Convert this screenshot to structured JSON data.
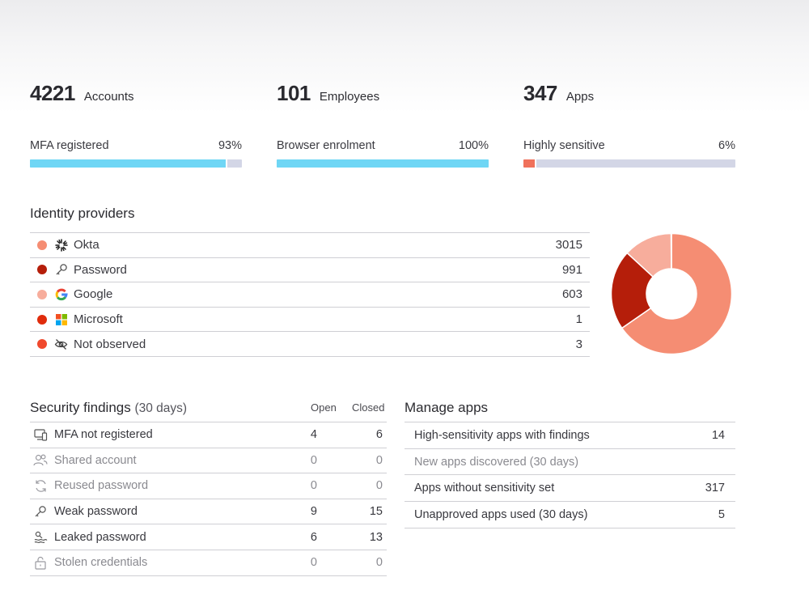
{
  "stats": [
    {
      "value": "4221",
      "label": "Accounts"
    },
    {
      "value": "101",
      "label": "Employees"
    },
    {
      "value": "347",
      "label": "Apps"
    }
  ],
  "meters": [
    {
      "label": "MFA registered",
      "value_text": "93%",
      "fraction": 0.93,
      "color": "#6fd6f5"
    },
    {
      "label": "Browser enrolment",
      "value_text": "100%",
      "fraction": 1.0,
      "color": "#6fd6f5"
    },
    {
      "label": "Highly sensitive",
      "value_text": "6%",
      "fraction": 0.06,
      "color": "#f0715b"
    }
  ],
  "identity_providers": {
    "title": "Identity providers",
    "rows": [
      {
        "name": "Okta",
        "count": "3015",
        "dot_color": "#f58d73",
        "icon": "okta-icon"
      },
      {
        "name": "Password",
        "count": "991",
        "dot_color": "#b51e0a",
        "icon": "key-icon"
      },
      {
        "name": "Google",
        "count": "603",
        "dot_color": "#f7ad9c",
        "icon": "google-icon"
      },
      {
        "name": "Microsoft",
        "count": "1",
        "dot_color": "#e02c0c",
        "icon": "microsoft-icon"
      },
      {
        "name": "Not observed",
        "count": "3",
        "dot_color": "#f0492d",
        "icon": "eye-off-icon"
      }
    ]
  },
  "chart_data": {
    "type": "pie",
    "donut": true,
    "categories": [
      "Okta",
      "Password",
      "Google",
      "Microsoft",
      "Not observed"
    ],
    "values": [
      3015,
      991,
      603,
      1,
      3
    ],
    "colors": [
      "#f58d73",
      "#b51e0a",
      "#f7ad9c",
      "#e02c0c",
      "#f0492d"
    ]
  },
  "security_findings": {
    "title": "Security findings",
    "subtitle": "(30 days)",
    "col_open": "Open",
    "col_closed": "Closed",
    "rows": [
      {
        "label": "MFA not registered",
        "open": "4",
        "closed": "6",
        "muted": false,
        "icon": "devices-icon"
      },
      {
        "label": "Shared account",
        "open": "0",
        "closed": "0",
        "muted": true,
        "icon": "users-icon"
      },
      {
        "label": "Reused password",
        "open": "0",
        "closed": "0",
        "muted": true,
        "icon": "refresh-icon"
      },
      {
        "label": "Weak password",
        "open": "9",
        "closed": "15",
        "muted": false,
        "icon": "key-icon"
      },
      {
        "label": "Leaked password",
        "open": "6",
        "closed": "13",
        "muted": false,
        "icon": "leak-icon"
      },
      {
        "label": "Stolen credentials",
        "open": "0",
        "closed": "0",
        "muted": true,
        "icon": "lock-icon"
      }
    ]
  },
  "manage_apps": {
    "title": "Manage apps",
    "rows": [
      {
        "label": "High-sensitivity apps with findings",
        "count": "14",
        "muted": false
      },
      {
        "label": "New apps discovered (30 days)",
        "count": "",
        "muted": true
      },
      {
        "label": "Apps without sensitivity set",
        "count": "317",
        "muted": false
      },
      {
        "label": "Unapproved apps used (30 days)",
        "count": "5",
        "muted": false
      }
    ]
  }
}
